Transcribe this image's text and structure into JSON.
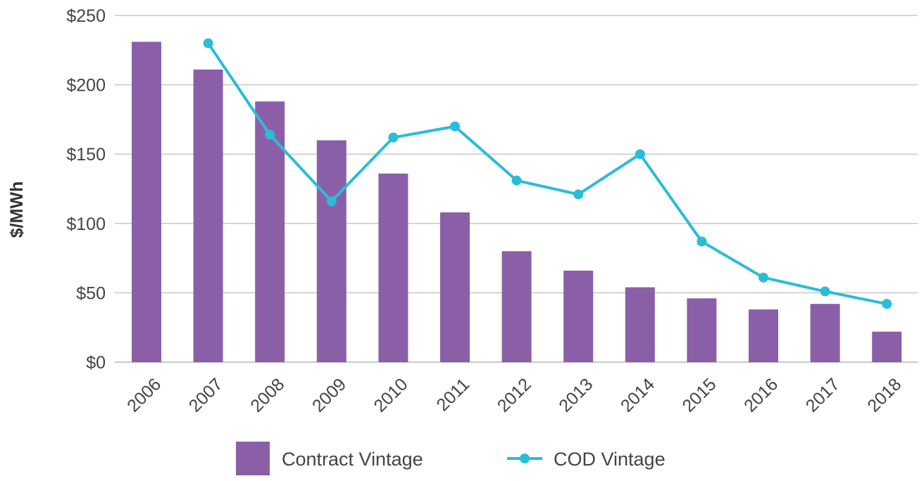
{
  "chart_data": {
    "type": "bar",
    "ylabel": "$/MWh",
    "xlabel": "",
    "ylim": [
      0,
      250
    ],
    "yticks": [
      0,
      50,
      100,
      150,
      200,
      250
    ],
    "ytick_labels": [
      "$0",
      "$50",
      "$100",
      "$150",
      "$200",
      "$250"
    ],
    "categories": [
      "2006",
      "2007",
      "2008",
      "2009",
      "2010",
      "2011",
      "2012",
      "2013",
      "2014",
      "2015",
      "2016",
      "2017",
      "2018"
    ],
    "grid": true,
    "legend_position": "bottom-center",
    "series": [
      {
        "name": "Contract Vintage",
        "type": "bar",
        "color": "#8b5fa8",
        "values": [
          231,
          211,
          188,
          160,
          136,
          108,
          80,
          66,
          54,
          46,
          38,
          42,
          22
        ]
      },
      {
        "name": "COD Vintage",
        "type": "line",
        "color": "#2bbcd8",
        "values": [
          null,
          230,
          164,
          116,
          162,
          170,
          131,
          121,
          150,
          87,
          61,
          51,
          42
        ]
      }
    ]
  }
}
